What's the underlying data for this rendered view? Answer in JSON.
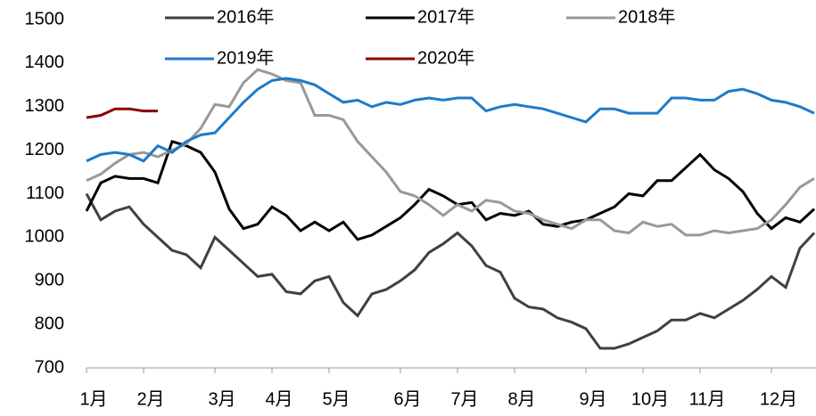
{
  "chart_data": {
    "type": "line",
    "categories": [
      "1月",
      null,
      null,
      null,
      "2月",
      null,
      null,
      null,
      null,
      "3月",
      null,
      null,
      null,
      "4月",
      null,
      null,
      null,
      "5月",
      null,
      null,
      null,
      null,
      "6月",
      null,
      null,
      null,
      "7月",
      null,
      null,
      null,
      "8月",
      null,
      null,
      null,
      null,
      "9月",
      null,
      null,
      null,
      "10月",
      null,
      null,
      null,
      "11月",
      null,
      null,
      null,
      null,
      "12月",
      null,
      null,
      null
    ],
    "series": [
      {
        "name": "2016年",
        "color": "#404040",
        "values": [
          1100,
          1040,
          1060,
          1070,
          1030,
          1000,
          970,
          960,
          930,
          1000,
          970,
          940,
          910,
          915,
          875,
          870,
          900,
          910,
          850,
          820,
          870,
          880,
          900,
          925,
          965,
          985,
          1010,
          980,
          935,
          920,
          860,
          840,
          835,
          815,
          805,
          790,
          745,
          745,
          755,
          770,
          785,
          810,
          810,
          825,
          815,
          835,
          855,
          880,
          910,
          885,
          975,
          1010
        ]
      },
      {
        "name": "2017年",
        "color": "#000000",
        "values": [
          1060,
          1125,
          1140,
          1135,
          1135,
          1125,
          1220,
          1210,
          1195,
          1150,
          1065,
          1020,
          1030,
          1070,
          1050,
          1015,
          1035,
          1015,
          1035,
          995,
          1005,
          1025,
          1045,
          1075,
          1110,
          1095,
          1075,
          1080,
          1040,
          1055,
          1050,
          1060,
          1030,
          1025,
          1035,
          1040,
          1055,
          1070,
          1100,
          1095,
          1130,
          1130,
          1160,
          1190,
          1155,
          1135,
          1105,
          1055,
          1020,
          1045,
          1035,
          1065
        ]
      },
      {
        "name": "2018年",
        "color": "#999999",
        "values": [
          1130,
          1145,
          1170,
          1190,
          1195,
          1185,
          1200,
          1215,
          1250,
          1305,
          1300,
          1355,
          1385,
          1375,
          1360,
          1355,
          1280,
          1280,
          1270,
          1220,
          1185,
          1150,
          1105,
          1095,
          1075,
          1050,
          1075,
          1060,
          1085,
          1080,
          1060,
          1055,
          1040,
          1030,
          1020,
          1040,
          1040,
          1015,
          1010,
          1035,
          1025,
          1030,
          1005,
          1005,
          1015,
          1010,
          1015,
          1020,
          1040,
          1075,
          1115,
          1135
        ]
      },
      {
        "name": "2019年",
        "color": "#1f7ac8",
        "values": [
          1175,
          1190,
          1195,
          1190,
          1175,
          1210,
          1195,
          1220,
          1235,
          1240,
          1275,
          1310,
          1340,
          1360,
          1365,
          1360,
          1350,
          1330,
          1310,
          1315,
          1300,
          1310,
          1305,
          1315,
          1320,
          1315,
          1320,
          1320,
          1290,
          1300,
          1305,
          1300,
          1295,
          1285,
          1275,
          1265,
          1295,
          1295,
          1285,
          1285,
          1285,
          1320,
          1320,
          1315,
          1315,
          1335,
          1340,
          1330,
          1315,
          1310,
          1300,
          1285
        ]
      },
      {
        "name": "2020年",
        "color": "#8b0000",
        "values": [
          1275,
          1280,
          1295,
          1295,
          1290,
          1290,
          null,
          null,
          null,
          null,
          null,
          null,
          null,
          null,
          null,
          null,
          null,
          null,
          null,
          null,
          null,
          null,
          null,
          null,
          null,
          null,
          null,
          null,
          null,
          null,
          null,
          null,
          null,
          null,
          null,
          null,
          null,
          null,
          null,
          null,
          null,
          null,
          null,
          null,
          null,
          null,
          null,
          null,
          null,
          null,
          null,
          null
        ]
      }
    ],
    "ylim": [
      700,
      1500
    ],
    "yticks": [
      700,
      800,
      900,
      1000,
      1100,
      1200,
      1300,
      1400,
      1500
    ]
  }
}
